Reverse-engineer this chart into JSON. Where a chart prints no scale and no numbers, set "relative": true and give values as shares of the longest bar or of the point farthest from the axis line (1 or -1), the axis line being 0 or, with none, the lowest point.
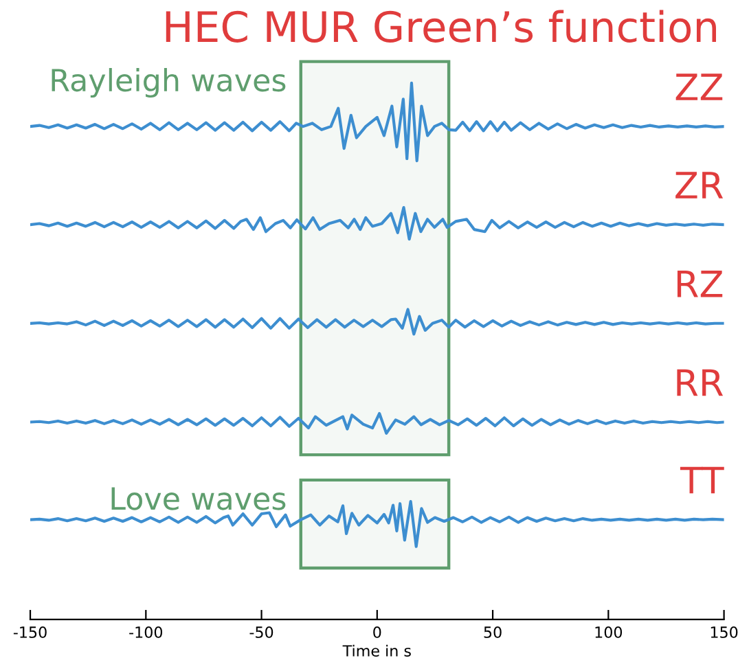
{
  "chart_data": {
    "type": "line",
    "title": "HEC MUR Green’s function",
    "xlabel": "Time in s",
    "relative": true,
    "xlim": [
      -150,
      150
    ],
    "xticks": [
      -150,
      -100,
      -50,
      0,
      50,
      100,
      150
    ],
    "tick_labels": "x",
    "grid": false,
    "marker": "none",
    "line_style": "solid",
    "bands": [
      {
        "axis": "x",
        "from": -33,
        "to": 31,
        "label": "Rayleigh waves",
        "color": "#5f9e6e"
      },
      {
        "axis": "x",
        "from": -33,
        "to": 31,
        "label": "Love waves",
        "color": "#5f9e6e"
      }
    ],
    "series": [
      {
        "name": "ZZ",
        "color": "#3d8ed0",
        "x": [
          -150,
          -146,
          -142,
          -138,
          -134,
          -130,
          -126,
          -122,
          -118,
          -114,
          -110,
          -106,
          -102,
          -98,
          -94,
          -90,
          -86,
          -82,
          -78,
          -74,
          -70,
          -66,
          -62,
          -58,
          -54,
          -50,
          -46,
          -42,
          -38,
          -35,
          -32,
          -28,
          -24,
          -20,
          -16.8,
          -14.3,
          -11.3,
          -8.9,
          -4.9,
          0,
          3,
          6.4,
          8.5,
          11.3,
          12.9,
          14.9,
          17.2,
          19.2,
          21.8,
          24.8,
          28,
          31,
          34,
          37,
          40,
          43,
          46,
          49,
          52,
          55,
          58,
          62,
          66,
          70,
          74,
          78,
          82,
          86,
          90,
          94,
          98,
          102,
          106,
          110,
          114,
          118,
          122,
          126,
          130,
          134,
          138,
          142,
          146,
          150
        ],
        "values": [
          0.919,
          0.921,
          0.917,
          0.922,
          0.916,
          0.922,
          0.916,
          0.923,
          0.915,
          0.923,
          0.915,
          0.924,
          0.914,
          0.925,
          0.913,
          0.926,
          0.913,
          0.925,
          0.913,
          0.926,
          0.912,
          0.926,
          0.912,
          0.927,
          0.911,
          0.927,
          0.912,
          0.928,
          0.911,
          0.925,
          0.919,
          0.925,
          0.913,
          0.919,
          0.953,
          0.878,
          0.94,
          0.898,
          0.919,
          0.936,
          0.902,
          0.957,
          0.881,
          0.97,
          0.859,
          1.0,
          0.855,
          0.957,
          0.902,
          0.919,
          0.925,
          0.913,
          0.912,
          0.927,
          0.911,
          0.928,
          0.911,
          0.928,
          0.911,
          0.927,
          0.912,
          0.926,
          0.913,
          0.925,
          0.914,
          0.924,
          0.915,
          0.923,
          0.916,
          0.922,
          0.917,
          0.922,
          0.917,
          0.921,
          0.918,
          0.921,
          0.918,
          0.92,
          0.918,
          0.92,
          0.918,
          0.92,
          0.918,
          0.919
        ]
      },
      {
        "name": "ZR",
        "color": "#3d8ed0",
        "x": [
          -150,
          -146,
          -142,
          -138,
          -134,
          -130,
          -126,
          -122,
          -118,
          -114,
          -110,
          -106,
          -102,
          -98,
          -94,
          -90,
          -86,
          -82,
          -78,
          -74,
          -70,
          -66,
          -62,
          -59,
          -56.5,
          -53.5,
          -50.5,
          -48.1,
          -44,
          -40.6,
          -37.5,
          -34.7,
          -31,
          -27.7,
          -24.8,
          -20.8,
          -16,
          -12.5,
          -9.9,
          -7.3,
          -4.9,
          -2,
          2,
          6,
          8.9,
          11.5,
          13.9,
          16.5,
          18.9,
          21.8,
          24.8,
          28.4,
          30.3,
          34,
          38.7,
          42,
          46.6,
          49.6,
          53,
          57,
          61,
          65,
          69,
          73,
          77,
          81,
          85,
          89,
          93,
          97,
          101,
          105,
          109,
          113,
          117,
          121,
          125,
          129,
          133,
          137,
          141,
          145,
          150
        ],
        "values": [
          0.736,
          0.738,
          0.734,
          0.739,
          0.733,
          0.739,
          0.733,
          0.74,
          0.732,
          0.74,
          0.732,
          0.741,
          0.731,
          0.741,
          0.731,
          0.742,
          0.73,
          0.742,
          0.73,
          0.743,
          0.729,
          0.744,
          0.729,
          0.742,
          0.746,
          0.727,
          0.749,
          0.723,
          0.738,
          0.744,
          0.73,
          0.745,
          0.728,
          0.749,
          0.727,
          0.738,
          0.744,
          0.73,
          0.746,
          0.727,
          0.749,
          0.733,
          0.738,
          0.757,
          0.721,
          0.768,
          0.709,
          0.757,
          0.723,
          0.746,
          0.731,
          0.746,
          0.731,
          0.742,
          0.746,
          0.727,
          0.723,
          0.744,
          0.73,
          0.742,
          0.73,
          0.741,
          0.731,
          0.741,
          0.731,
          0.74,
          0.732,
          0.74,
          0.733,
          0.739,
          0.733,
          0.739,
          0.734,
          0.738,
          0.734,
          0.738,
          0.735,
          0.737,
          0.735,
          0.737,
          0.735,
          0.737,
          0.736
        ]
      },
      {
        "name": "RZ",
        "color": "#3d8ed0",
        "x": [
          -150,
          -146,
          -142,
          -138,
          -134,
          -130,
          -126,
          -122,
          -118,
          -114,
          -110,
          -106,
          -102,
          -98,
          -94,
          -90,
          -86,
          -82,
          -78,
          -74,
          -70,
          -66,
          -62,
          -58,
          -54,
          -50,
          -46,
          -42,
          -38,
          -34,
          -30,
          -26,
          -22,
          -18,
          -14,
          -10,
          -6,
          -2,
          2,
          6,
          8,
          10.9,
          13.3,
          15.9,
          18.3,
          20.8,
          24,
          28,
          31,
          34,
          38,
          42,
          46,
          50,
          54,
          58,
          62,
          66,
          70,
          74,
          78,
          82,
          86,
          90,
          94,
          98,
          102,
          106,
          110,
          114,
          118,
          122,
          126,
          130,
          134,
          138,
          142,
          146,
          150
        ],
        "values": [
          0.552,
          0.553,
          0.551,
          0.553,
          0.551,
          0.555,
          0.549,
          0.556,
          0.548,
          0.556,
          0.548,
          0.557,
          0.547,
          0.557,
          0.547,
          0.558,
          0.546,
          0.558,
          0.546,
          0.559,
          0.545,
          0.559,
          0.545,
          0.56,
          0.544,
          0.561,
          0.543,
          0.561,
          0.543,
          0.56,
          0.544,
          0.559,
          0.545,
          0.559,
          0.545,
          0.558,
          0.546,
          0.558,
          0.546,
          0.559,
          0.56,
          0.543,
          0.578,
          0.532,
          0.565,
          0.539,
          0.552,
          0.558,
          0.545,
          0.558,
          0.545,
          0.557,
          0.546,
          0.557,
          0.547,
          0.556,
          0.548,
          0.555,
          0.549,
          0.555,
          0.549,
          0.554,
          0.55,
          0.554,
          0.55,
          0.554,
          0.55,
          0.553,
          0.551,
          0.553,
          0.551,
          0.553,
          0.551,
          0.553,
          0.551,
          0.553,
          0.551,
          0.552,
          0.552
        ]
      },
      {
        "name": "RR",
        "color": "#3d8ed0",
        "x": [
          -150,
          -146,
          -142,
          -138,
          -134,
          -130,
          -126,
          -122,
          -118,
          -114,
          -110,
          -106,
          -102,
          -98,
          -94,
          -90,
          -86,
          -82,
          -78,
          -74,
          -70,
          -66,
          -62,
          -58,
          -54,
          -50,
          -46,
          -42,
          -38,
          -34,
          -29.7,
          -26.7,
          -22,
          -18,
          -14.8,
          -12.9,
          -10.9,
          -6,
          -2,
          1,
          4,
          8,
          12,
          15.9,
          19,
          23,
          27,
          31,
          35,
          39,
          43,
          47,
          51,
          55,
          59,
          63,
          67,
          71,
          75,
          79,
          83,
          87,
          91,
          95,
          99,
          103,
          107,
          111,
          115,
          119,
          123,
          127,
          131,
          135,
          139,
          143,
          147,
          150
        ],
        "values": [
          0.368,
          0.369,
          0.367,
          0.37,
          0.366,
          0.37,
          0.366,
          0.371,
          0.365,
          0.371,
          0.365,
          0.372,
          0.364,
          0.372,
          0.364,
          0.373,
          0.363,
          0.373,
          0.363,
          0.374,
          0.362,
          0.374,
          0.362,
          0.375,
          0.361,
          0.376,
          0.361,
          0.377,
          0.36,
          0.375,
          0.357,
          0.378,
          0.362,
          0.371,
          0.378,
          0.355,
          0.381,
          0.364,
          0.357,
          0.384,
          0.347,
          0.372,
          0.364,
          0.378,
          0.363,
          0.373,
          0.363,
          0.371,
          0.363,
          0.374,
          0.362,
          0.375,
          0.361,
          0.376,
          0.361,
          0.374,
          0.362,
          0.373,
          0.363,
          0.372,
          0.364,
          0.371,
          0.365,
          0.371,
          0.365,
          0.37,
          0.366,
          0.37,
          0.366,
          0.369,
          0.367,
          0.369,
          0.367,
          0.369,
          0.367,
          0.369,
          0.367,
          0.368
        ]
      },
      {
        "name": "TT",
        "color": "#3d8ed0",
        "x": [
          -150,
          -146,
          -142,
          -138,
          -134,
          -130,
          -126,
          -122,
          -118,
          -114,
          -110,
          -106,
          -102,
          -98,
          -94,
          -90,
          -86,
          -82,
          -78,
          -74,
          -70,
          -66.4,
          -64.4,
          -62.4,
          -58,
          -54,
          -50,
          -46.6,
          -43.6,
          -39.6,
          -37.6,
          -33,
          -28.7,
          -24.8,
          -20.8,
          -17,
          -14.8,
          -13.3,
          -10.9,
          -7.9,
          -4,
          0,
          3,
          5,
          6.9,
          8.5,
          9.9,
          11.9,
          14.5,
          16.9,
          19.2,
          21.8,
          25,
          29,
          33,
          37,
          41,
          45,
          49,
          53,
          57,
          61,
          65,
          69,
          73,
          77,
          81,
          85,
          89,
          93,
          97,
          101,
          105,
          109,
          113,
          117,
          121,
          125,
          129,
          133,
          137,
          141,
          145,
          150
        ],
        "values": [
          0.186,
          0.187,
          0.185,
          0.188,
          0.184,
          0.188,
          0.184,
          0.189,
          0.183,
          0.189,
          0.183,
          0.19,
          0.182,
          0.19,
          0.182,
          0.191,
          0.181,
          0.191,
          0.181,
          0.192,
          0.18,
          0.19,
          0.193,
          0.176,
          0.197,
          0.176,
          0.197,
          0.199,
          0.173,
          0.195,
          0.174,
          0.186,
          0.195,
          0.176,
          0.193,
          0.182,
          0.212,
          0.16,
          0.198,
          0.176,
          0.194,
          0.18,
          0.196,
          0.18,
          0.213,
          0.165,
          0.216,
          0.148,
          0.22,
          0.136,
          0.207,
          0.181,
          0.19,
          0.183,
          0.19,
          0.182,
          0.191,
          0.181,
          0.19,
          0.182,
          0.191,
          0.181,
          0.19,
          0.183,
          0.189,
          0.184,
          0.188,
          0.184,
          0.188,
          0.185,
          0.187,
          0.185,
          0.187,
          0.185,
          0.187,
          0.185,
          0.187,
          0.185,
          0.187,
          0.185,
          0.187,
          0.186,
          0.187,
          0.186
        ]
      }
    ]
  }
}
